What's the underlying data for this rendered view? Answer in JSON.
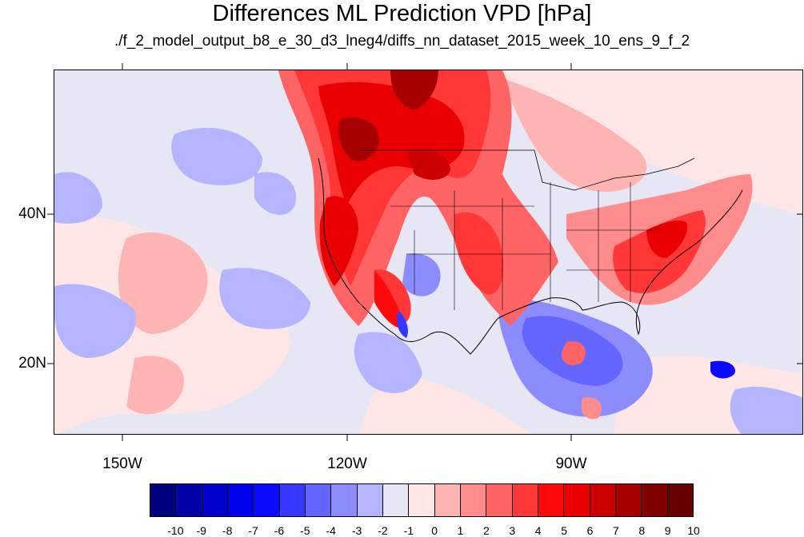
{
  "title": "Differences ML Prediction VPD [hPa]",
  "subtitle": "./f_2_model_output_b8_e_30_d3_lneg4/diffs_nn_dataset_2015_week_10_ens_9_f_2",
  "map": {
    "lat_labels": [
      {
        "text": "40N",
        "lat": 40
      },
      {
        "text": "20N",
        "lat": 20
      }
    ],
    "lon_labels": [
      {
        "text": "150W",
        "lon": -150
      },
      {
        "text": "120W",
        "lon": -120
      },
      {
        "text": "90W",
        "lon": -90
      }
    ],
    "lon_range": [
      -159.4,
      -59.5
    ],
    "lat_range": [
      11,
      60
    ]
  },
  "colorbar": {
    "colors": [
      "#00007f",
      "#0000a6",
      "#0000cc",
      "#0000ea",
      "#0a0aff",
      "#3737ff",
      "#6464ff",
      "#8c8cff",
      "#b4b4ff",
      "#e6e6f5",
      "#ffe6e6",
      "#ffb4b4",
      "#ff8c8c",
      "#ff6464",
      "#ff3737",
      "#ff0a0a",
      "#ea0000",
      "#cc0000",
      "#a60000",
      "#7f0000",
      "#660000"
    ],
    "labels": [
      "-10",
      "-9",
      "-8",
      "-7",
      "-6",
      "-5",
      "-4",
      "-3",
      "-2",
      "-1",
      "0",
      "1",
      "2",
      "3",
      "4",
      "5",
      "6",
      "7",
      "8",
      "9",
      "10"
    ]
  }
}
